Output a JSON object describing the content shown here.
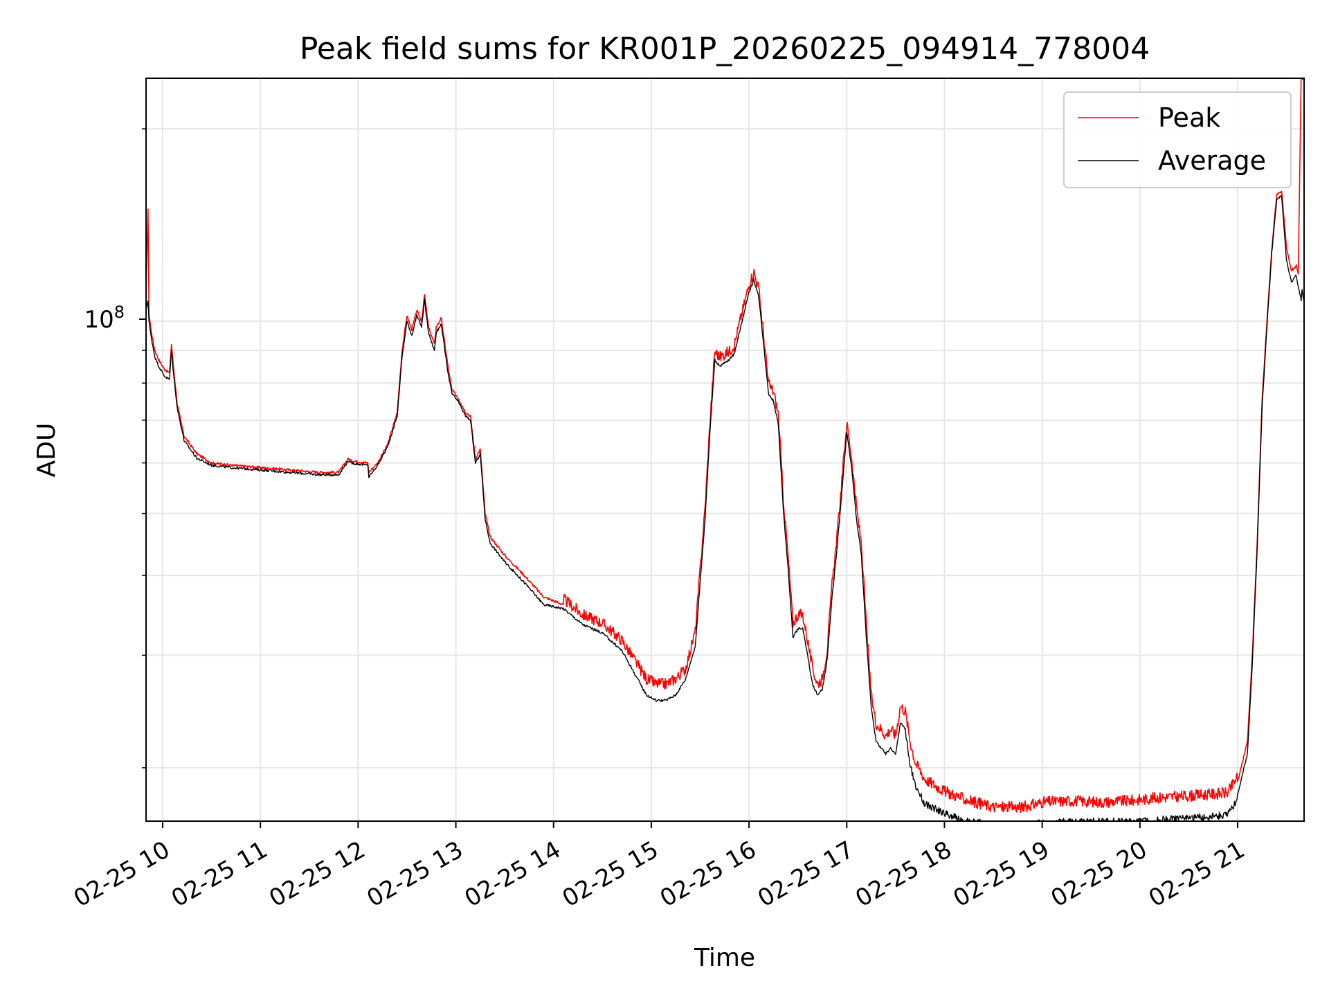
{
  "chart_data": {
    "type": "line",
    "title": "Peak field sums for KR001P_20260225_094914_778004",
    "xlabel": "Time",
    "ylabel": "ADU",
    "yscale": "log",
    "grid": true,
    "legend_position": "top-right",
    "x_tick_labels": [
      "02-25 10",
      "02-25 11",
      "02-25 12",
      "02-25 13",
      "02-25 14",
      "02-25 15",
      "02-25 16",
      "02-25 17",
      "02-25 18",
      "02-25 19",
      "02-25 20",
      "02-25 21"
    ],
    "x_tick_hours": [
      10,
      11,
      12,
      13,
      14,
      15,
      16,
      17,
      18,
      19,
      20,
      21
    ],
    "xlim_hours": [
      9.83,
      21.68
    ],
    "ylim": [
      16500000,
      240000000
    ],
    "y_tick_major": {
      "value": 100000000,
      "base": "10",
      "exp": "8"
    },
    "y_minor_ticks": [
      20000000,
      30000000,
      40000000,
      50000000,
      60000000,
      70000000,
      80000000,
      90000000,
      200000000
    ],
    "series": [
      {
        "name": "Peak",
        "color": "#ff0000",
        "x_hours": [
          9.83,
          9.85,
          9.86,
          9.88,
          9.92,
          9.96,
          10.02,
          10.07,
          10.09,
          10.11,
          10.15,
          10.22,
          10.35,
          10.5,
          10.7,
          11.0,
          11.3,
          11.6,
          11.8,
          11.9,
          11.92,
          12.1,
          12.11,
          12.2,
          12.3,
          12.4,
          12.45,
          12.5,
          12.55,
          12.6,
          12.65,
          12.68,
          12.72,
          12.78,
          12.8,
          12.85,
          12.92,
          12.96,
          13.02,
          13.1,
          13.15,
          13.2,
          13.25,
          13.3,
          13.35,
          13.5,
          13.7,
          13.9,
          14.1,
          14.3,
          14.5,
          14.7,
          14.95,
          15.05,
          15.15,
          15.25,
          15.35,
          15.45,
          15.55,
          15.6,
          15.65,
          15.7,
          15.8,
          15.85,
          15.9,
          15.95,
          16.0,
          16.05,
          16.1,
          16.15,
          16.2,
          16.25,
          16.3,
          16.35,
          16.4,
          16.45,
          16.5,
          16.55,
          16.6,
          16.65,
          16.7,
          16.75,
          16.8,
          16.85,
          16.9,
          16.95,
          17.0,
          17.05,
          17.1,
          17.15,
          17.2,
          17.25,
          17.3,
          17.35,
          17.4,
          17.45,
          17.5,
          17.55,
          17.6,
          17.65,
          17.7,
          17.8,
          18.0,
          18.2,
          18.5,
          18.8,
          19.0,
          19.3,
          19.6,
          19.9,
          20.2,
          20.5,
          20.7,
          20.9,
          21.0,
          21.1,
          21.15,
          21.2,
          21.25,
          21.3,
          21.35,
          21.4,
          21.45,
          21.5,
          21.55,
          21.6,
          21.62,
          21.65,
          21.66,
          21.68
        ],
        "values": [
          110000000,
          150000000,
          103000000,
          97000000,
          90000000,
          87000000,
          84000000,
          83000000,
          92000000,
          85000000,
          74000000,
          66000000,
          62000000,
          60000000,
          59500000,
          59000000,
          58500000,
          58000000,
          58000000,
          61000000,
          60500000,
          60000000,
          58000000,
          60000000,
          64000000,
          72000000,
          90000000,
          102000000,
          97000000,
          104000000,
          100000000,
          110000000,
          98000000,
          92000000,
          98000000,
          101000000,
          85000000,
          78000000,
          76000000,
          72000000,
          71000000,
          61000000,
          63000000,
          50000000,
          46000000,
          43000000,
          40000000,
          37000000,
          36000000,
          34000000,
          33000000,
          31000000,
          27000000,
          26500000,
          26500000,
          27000000,
          28000000,
          32000000,
          50000000,
          68000000,
          88000000,
          86000000,
          88000000,
          90000000,
          97000000,
          104000000,
          112000000,
          117000000,
          110000000,
          93000000,
          78000000,
          76000000,
          70000000,
          52000000,
          42000000,
          33000000,
          34000000,
          34000000,
          31000000,
          28000000,
          26500000,
          27000000,
          30000000,
          38000000,
          45000000,
          55000000,
          68000000,
          60000000,
          50000000,
          44000000,
          33000000,
          25500000,
          23000000,
          22500000,
          22000000,
          22500000,
          22000000,
          24500000,
          24000000,
          21500000,
          20000000,
          18800000,
          18000000,
          17500000,
          17000000,
          17000000,
          17300000,
          17400000,
          17300000,
          17400000,
          17600000,
          17700000,
          17800000,
          17900000,
          19000000,
          22000000,
          30000000,
          45000000,
          75000000,
          100000000,
          130000000,
          158000000,
          160000000,
          130000000,
          120000000,
          122000000,
          118000000,
          240000000,
          240000000,
          240000000
        ]
      },
      {
        "name": "Average",
        "color": "#000000",
        "x_hours": [
          9.83,
          9.85,
          9.86,
          9.88,
          9.92,
          9.96,
          10.02,
          10.07,
          10.09,
          10.11,
          10.15,
          10.22,
          10.35,
          10.5,
          10.7,
          11.0,
          11.3,
          11.6,
          11.8,
          11.9,
          11.92,
          12.1,
          12.11,
          12.2,
          12.3,
          12.4,
          12.45,
          12.5,
          12.55,
          12.6,
          12.65,
          12.68,
          12.72,
          12.78,
          12.8,
          12.85,
          12.92,
          12.96,
          13.02,
          13.1,
          13.15,
          13.2,
          13.25,
          13.3,
          13.35,
          13.5,
          13.7,
          13.9,
          14.1,
          14.3,
          14.5,
          14.7,
          14.95,
          15.05,
          15.15,
          15.25,
          15.35,
          15.45,
          15.55,
          15.6,
          15.65,
          15.7,
          15.8,
          15.85,
          15.9,
          15.95,
          16.0,
          16.05,
          16.1,
          16.15,
          16.2,
          16.25,
          16.3,
          16.35,
          16.4,
          16.45,
          16.5,
          16.55,
          16.6,
          16.65,
          16.7,
          16.75,
          16.8,
          16.85,
          16.9,
          16.95,
          17.0,
          17.05,
          17.1,
          17.15,
          17.2,
          17.25,
          17.3,
          17.35,
          17.4,
          17.45,
          17.5,
          17.55,
          17.6,
          17.65,
          17.7,
          17.8,
          18.0,
          18.2,
          18.5,
          18.8,
          19.0,
          19.3,
          19.6,
          19.9,
          20.2,
          20.5,
          20.7,
          20.9,
          21.0,
          21.1,
          21.15,
          21.2,
          21.25,
          21.3,
          21.35,
          21.4,
          21.45,
          21.5,
          21.55,
          21.6,
          21.62,
          21.65,
          21.66,
          21.68
        ],
        "values": [
          104000000,
          108000000,
          100000000,
          95000000,
          88000000,
          85000000,
          82000000,
          81000000,
          90000000,
          83000000,
          73000000,
          65000000,
          61000000,
          59500000,
          59000000,
          58500000,
          58000000,
          57500000,
          57500000,
          60500000,
          60000000,
          59500000,
          57000000,
          59500000,
          63500000,
          71000000,
          88000000,
          100000000,
          95000000,
          102000000,
          98000000,
          108000000,
          96000000,
          90000000,
          96000000,
          99000000,
          83000000,
          77000000,
          75000000,
          71000000,
          70000000,
          60000000,
          62000000,
          49000000,
          45000000,
          42000000,
          39000000,
          36000000,
          35500000,
          33500000,
          32500000,
          30500000,
          26000000,
          25500000,
          25500000,
          26000000,
          27500000,
          31000000,
          49000000,
          67000000,
          87000000,
          85000000,
          87000000,
          89000000,
          96000000,
          103000000,
          111000000,
          116000000,
          109000000,
          92000000,
          77000000,
          75000000,
          69000000,
          51000000,
          41000000,
          32000000,
          33000000,
          33000000,
          30000000,
          27000000,
          26000000,
          26500000,
          29500000,
          37000000,
          44000000,
          54000000,
          67000000,
          59000000,
          49000000,
          43000000,
          32000000,
          25000000,
          22000000,
          21500000,
          21000000,
          21500000,
          21000000,
          23500000,
          23000000,
          20500000,
          19000000,
          17800000,
          17200000,
          16800000,
          16500000,
          16500000,
          16600000,
          16700000,
          16700000,
          16700000,
          16800000,
          16900000,
          17000000,
          17100000,
          18200000,
          21000000,
          29000000,
          44000000,
          73000000,
          98000000,
          128000000,
          155000000,
          157000000,
          125000000,
          115000000,
          118000000,
          113000000,
          108000000,
          112000000,
          107000000
        ]
      }
    ]
  }
}
